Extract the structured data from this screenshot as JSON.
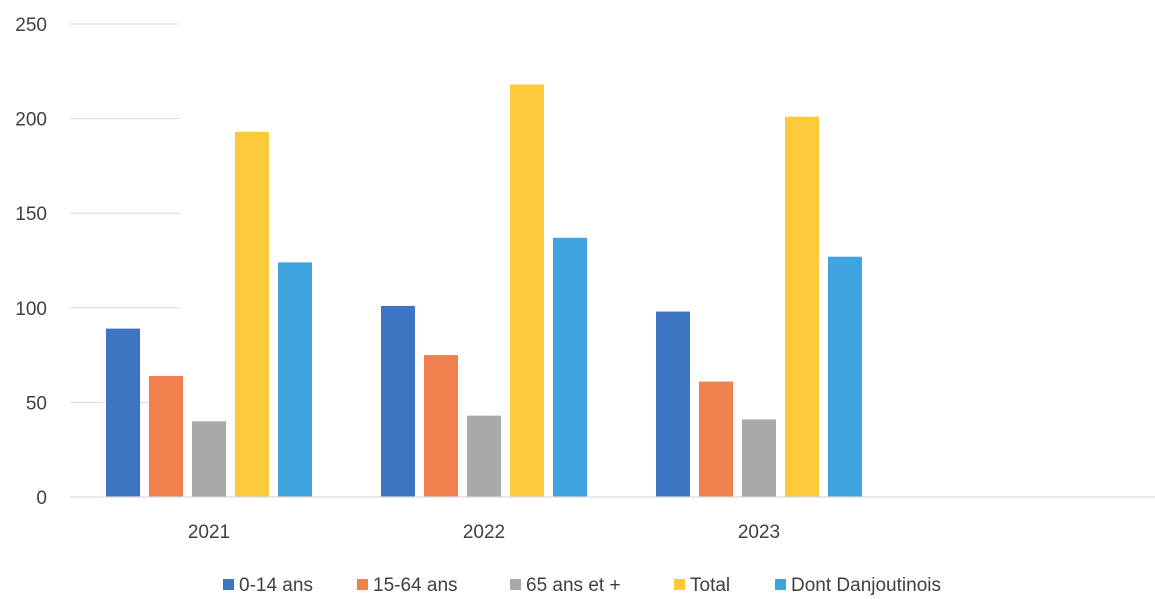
{
  "chart_data": {
    "type": "bar",
    "categories": [
      "2021",
      "2022",
      "2023"
    ],
    "series": [
      {
        "name": "0-14 ans",
        "color": "#3E75C2",
        "values": [
          89,
          101,
          98
        ]
      },
      {
        "name": "15-64 ans",
        "color": "#F0814F",
        "values": [
          64,
          75,
          61
        ]
      },
      {
        "name": "65 ans et +",
        "color": "#A9A9A9",
        "values": [
          40,
          43,
          41
        ]
      },
      {
        "name": "Total",
        "color": "#FCC93A",
        "values": [
          193,
          218,
          201
        ]
      },
      {
        "name": "Dont Danjoutinois",
        "color": "#3FA3E0",
        "values": [
          124,
          137,
          127
        ]
      }
    ],
    "y_ticks": [
      "0",
      "50",
      "100",
      "150",
      "200",
      "250"
    ],
    "ylim": [
      0,
      250
    ],
    "grid": true,
    "legend_position": "bottom"
  }
}
